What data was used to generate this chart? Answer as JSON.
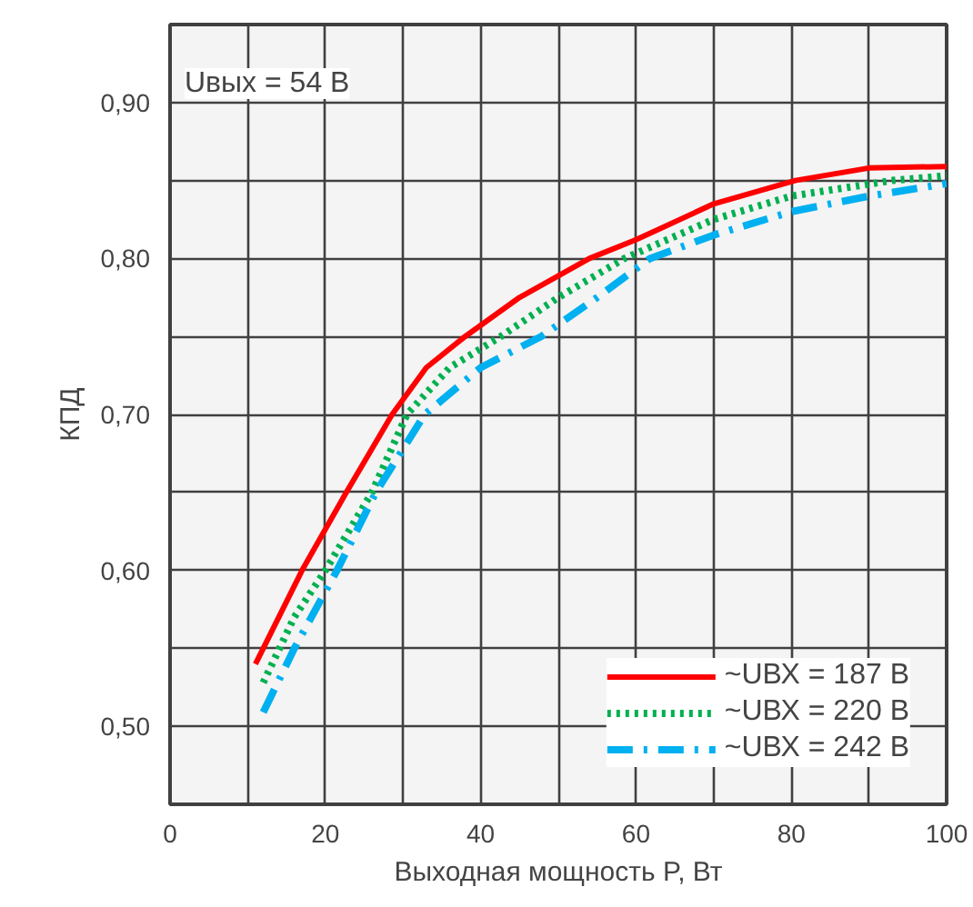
{
  "chart_data": {
    "type": "line",
    "xlabel": "Выходная мощность P, Вт",
    "ylabel": "КПД",
    "annotations": [
      "Uвых = 54 В"
    ],
    "xlim": [
      0,
      100
    ],
    "ylim": [
      0.45,
      0.95
    ],
    "xticks": [
      0,
      {
        "value": 10,
        "label": null
      },
      20,
      {
        "value": 30,
        "label": null
      },
      40,
      {
        "value": 50,
        "label": null
      },
      60,
      {
        "value": 70,
        "label": null
      },
      80,
      {
        "value": 90,
        "label": null
      },
      100
    ],
    "yticks": [
      {
        "value": 0.5,
        "label": "0,50"
      },
      {
        "value": 0.55,
        "label": null
      },
      {
        "value": 0.6,
        "label": "0,60"
      },
      {
        "value": 0.65,
        "label": null
      },
      {
        "value": 0.7,
        "label": "0,70"
      },
      {
        "value": 0.75,
        "label": null
      },
      {
        "value": 0.8,
        "label": "0,80"
      },
      {
        "value": 0.85,
        "label": null
      },
      {
        "value": 0.9,
        "label": "0,90"
      }
    ],
    "grid": true,
    "legend": "bottom right",
    "series": [
      {
        "name": "~UВХ = 187 В",
        "color": "#ff0000",
        "line_style": "solid",
        "x": [
          11,
          17,
          22.7,
          28.6,
          33,
          38,
          45,
          54,
          60,
          70,
          80.5,
          90,
          100
        ],
        "values": [
          0.54,
          0.6,
          0.65,
          0.7,
          0.73,
          0.75,
          0.775,
          0.8,
          0.812,
          0.835,
          0.85,
          0.858,
          0.859
        ]
      },
      {
        "name": "~UВХ = 220 В",
        "color": "#00b050",
        "line_style": "dotted",
        "x": [
          12,
          16,
          20,
          26,
          30.5,
          36,
          42.6,
          50,
          58.5,
          70,
          80,
          93,
          100
        ],
        "values": [
          0.528,
          0.57,
          0.6,
          0.65,
          0.7,
          0.73,
          0.75,
          0.775,
          0.8,
          0.825,
          0.84,
          0.85,
          0.853
        ]
      },
      {
        "name": "~UВХ = 242 В",
        "color": "#00b0f0",
        "line_style": "dashed",
        "x": [
          12,
          16,
          21.5,
          26.5,
          32.8,
          40,
          47.8,
          55,
          61.8,
          70,
          80,
          90,
          100
        ],
        "values": [
          0.509,
          0.55,
          0.6,
          0.65,
          0.7,
          0.73,
          0.75,
          0.775,
          0.8,
          0.815,
          0.83,
          0.84,
          0.848
        ]
      }
    ]
  }
}
